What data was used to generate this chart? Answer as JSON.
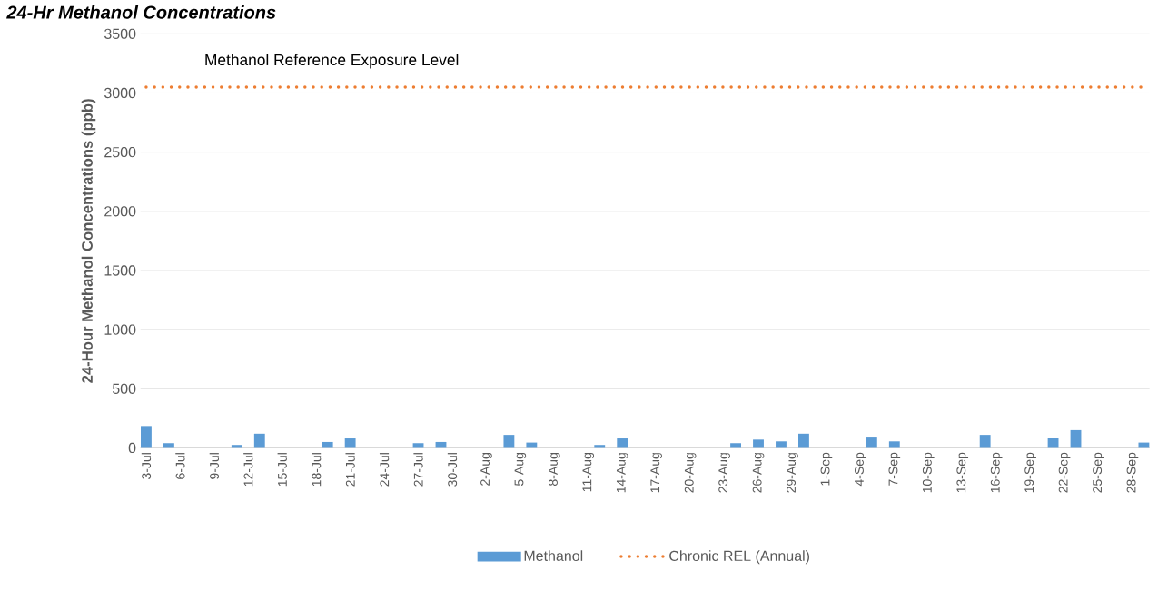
{
  "chart_data": {
    "type": "bar",
    "title": "24-Hr Methanol Concentrations",
    "ylabel": "24-Hour Methanol Concentrations (ppb)",
    "categories": [
      "3-Jul",
      null,
      null,
      "6-Jul",
      null,
      null,
      "9-Jul",
      null,
      null,
      "12-Jul",
      null,
      null,
      "15-Jul",
      null,
      null,
      "18-Jul",
      null,
      null,
      "21-Jul",
      null,
      null,
      "24-Jul",
      null,
      null,
      "27-Jul",
      null,
      null,
      "30-Jul",
      null,
      null,
      "2-Aug",
      null,
      null,
      "5-Aug",
      null,
      null,
      "8-Aug",
      null,
      null,
      "11-Aug",
      null,
      null,
      "14-Aug",
      null,
      null,
      "17-Aug",
      null,
      null,
      "20-Aug",
      null,
      null,
      "23-Aug",
      null,
      null,
      "26-Aug",
      null,
      null,
      "29-Aug",
      null,
      null,
      "1-Sep",
      null,
      null,
      "4-Sep",
      null,
      null,
      "7-Sep",
      null,
      null,
      "10-Sep",
      null,
      null,
      "13-Sep",
      null,
      null,
      "16-Sep",
      null,
      null,
      "19-Sep",
      null,
      null,
      "22-Sep",
      null,
      null,
      "25-Sep",
      null,
      null,
      "28-Sep",
      null
    ],
    "series": [
      {
        "name": "Methanol",
        "color": "#5b9bd5",
        "values": [
          185,
          null,
          40,
          null,
          null,
          null,
          null,
          null,
          25,
          null,
          120,
          null,
          null,
          null,
          null,
          null,
          50,
          null,
          80,
          null,
          null,
          null,
          null,
          null,
          40,
          null,
          50,
          null,
          null,
          null,
          null,
          null,
          110,
          null,
          45,
          null,
          null,
          null,
          null,
          null,
          25,
          null,
          80,
          null,
          null,
          null,
          null,
          null,
          null,
          null,
          null,
          null,
          40,
          null,
          70,
          null,
          55,
          null,
          120,
          null,
          null,
          null,
          null,
          null,
          95,
          null,
          55,
          null,
          null,
          null,
          null,
          null,
          null,
          null,
          110,
          null,
          null,
          null,
          null,
          null,
          85,
          null,
          150,
          null,
          null,
          null,
          null,
          null,
          45
        ]
      },
      {
        "name": "Chronic REL (Annual)",
        "type": "line",
        "color": "#ed7d31",
        "line_style": "dotted",
        "marker": "none",
        "values": [
          3050,
          3050,
          3050,
          3050,
          3050,
          3050,
          3050,
          3050,
          3050,
          3050,
          3050,
          3050,
          3050,
          3050,
          3050,
          3050,
          3050,
          3050,
          3050,
          3050,
          3050,
          3050,
          3050,
          3050,
          3050,
          3050,
          3050,
          3050,
          3050,
          3050,
          3050,
          3050,
          3050,
          3050,
          3050,
          3050,
          3050,
          3050,
          3050,
          3050,
          3050,
          3050,
          3050,
          3050,
          3050,
          3050,
          3050,
          3050,
          3050,
          3050,
          3050,
          3050,
          3050,
          3050,
          3050,
          3050,
          3050,
          3050,
          3050,
          3050,
          3050,
          3050,
          3050,
          3050,
          3050,
          3050,
          3050,
          3050,
          3050,
          3050,
          3050,
          3050,
          3050,
          3050,
          3050,
          3050,
          3050,
          3050,
          3050,
          3050,
          3050,
          3050,
          3050,
          3050,
          3050,
          3050,
          3050,
          3050,
          3050
        ]
      }
    ],
    "annotations": [
      "Methanol Reference Exposure Level"
    ],
    "ylim": [
      0,
      3500
    ],
    "yticks": [
      0,
      500,
      1000,
      1500,
      2000,
      2500,
      3000,
      3500
    ],
    "grid": "y",
    "legend": "bottom"
  }
}
